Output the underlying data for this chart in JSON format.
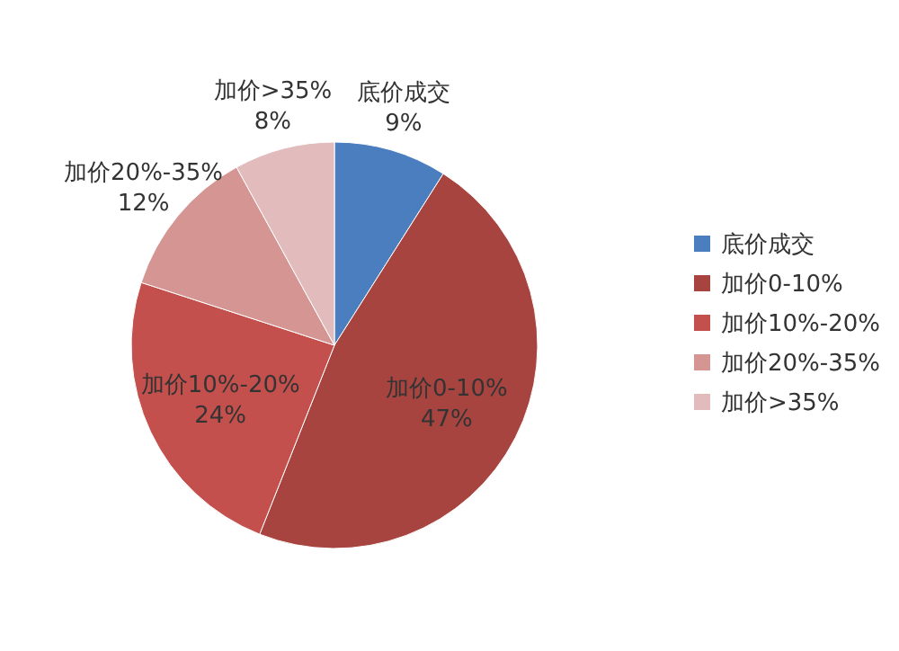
{
  "chart_data": {
    "type": "pie",
    "categories": [
      "底价成交",
      "加价0-10%",
      "加价10%-20%",
      "加价20%-35%",
      "加价>35%"
    ],
    "values": [
      9,
      47,
      24,
      12,
      8
    ],
    "colors": [
      "#4a7ebf",
      "#a8443f",
      "#c4504d",
      "#d49593",
      "#e2bcbd"
    ],
    "value_labels": [
      "9%",
      "47%",
      "24%",
      "12%",
      "8%"
    ],
    "legend": "right"
  }
}
